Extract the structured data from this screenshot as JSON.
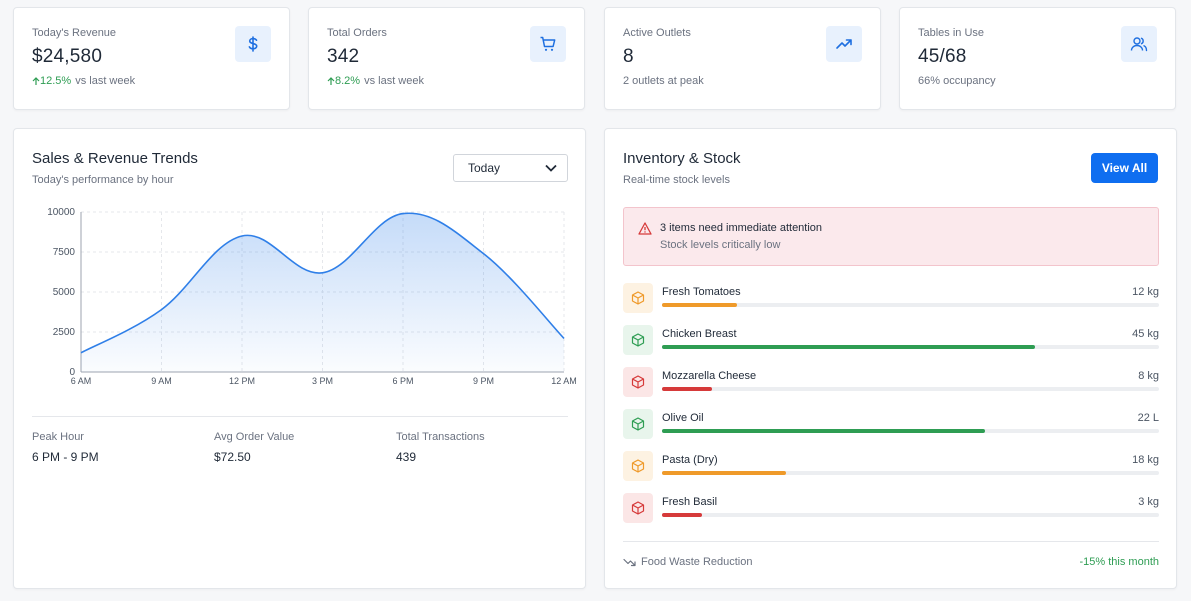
{
  "stats": [
    {
      "label": "Today's Revenue",
      "value": "$24,580",
      "change": "12.5%",
      "change_suffix": "vs last week",
      "icon": "dollar-icon"
    },
    {
      "label": "Total Orders",
      "value": "342",
      "change": "8.2%",
      "change_suffix": "vs last week",
      "icon": "cart-icon"
    },
    {
      "label": "Active Outlets",
      "value": "8",
      "note": "2 outlets at peak",
      "icon": "trending-up-icon"
    },
    {
      "label": "Tables in Use",
      "value": "45/68",
      "note": "66% occupancy",
      "icon": "users-icon"
    }
  ],
  "sales": {
    "title": "Sales & Revenue Trends",
    "subtitle": "Today's performance by hour",
    "range_selected": "Today",
    "summary": [
      {
        "label": "Peak Hour",
        "value": "6 PM - 9 PM"
      },
      {
        "label": "Avg Order Value",
        "value": "$72.50"
      },
      {
        "label": "Total Transactions",
        "value": "439"
      }
    ]
  },
  "chart_data": {
    "type": "area",
    "x": [
      "6 AM",
      "9 AM",
      "12 PM",
      "3 PM",
      "6 PM",
      "9 PM",
      "12 AM"
    ],
    "values": [
      1200,
      3900,
      8500,
      6200,
      9900,
      7400,
      2100
    ],
    "ylim": [
      0,
      10000
    ],
    "yticks": [
      0,
      2500,
      5000,
      7500,
      10000
    ],
    "grid": true,
    "color": "#2f7fe8"
  },
  "inventory": {
    "title": "Inventory & Stock",
    "subtitle": "Real-time stock levels",
    "view_all_label": "View All",
    "alert": {
      "title": "3 items need immediate attention",
      "subtitle": "Stock levels critically low"
    },
    "items": [
      {
        "name": "Fresh Tomatoes",
        "qty": "12 kg",
        "level": 0.15,
        "status": "warning"
      },
      {
        "name": "Chicken Breast",
        "qty": "45 kg",
        "level": 0.75,
        "status": "good"
      },
      {
        "name": "Mozzarella Cheese",
        "qty": "8 kg",
        "level": 0.1,
        "status": "critical"
      },
      {
        "name": "Olive Oil",
        "qty": "22 L",
        "level": 0.65,
        "status": "good"
      },
      {
        "name": "Pasta (Dry)",
        "qty": "18 kg",
        "level": 0.25,
        "status": "warning"
      },
      {
        "name": "Fresh Basil",
        "qty": "3 kg",
        "level": 0.08,
        "status": "critical"
      }
    ],
    "waste_label": "Food Waste Reduction",
    "waste_value": "-15% this month"
  },
  "colors": {
    "good": "#2e9d53",
    "warning": "#ef9a2a",
    "critical": "#d63a3a",
    "good_bg": "#e8f5ec",
    "warning_bg": "#fdf2e2",
    "critical_bg": "#fbe6e6",
    "accent": "#0f6ef0"
  }
}
